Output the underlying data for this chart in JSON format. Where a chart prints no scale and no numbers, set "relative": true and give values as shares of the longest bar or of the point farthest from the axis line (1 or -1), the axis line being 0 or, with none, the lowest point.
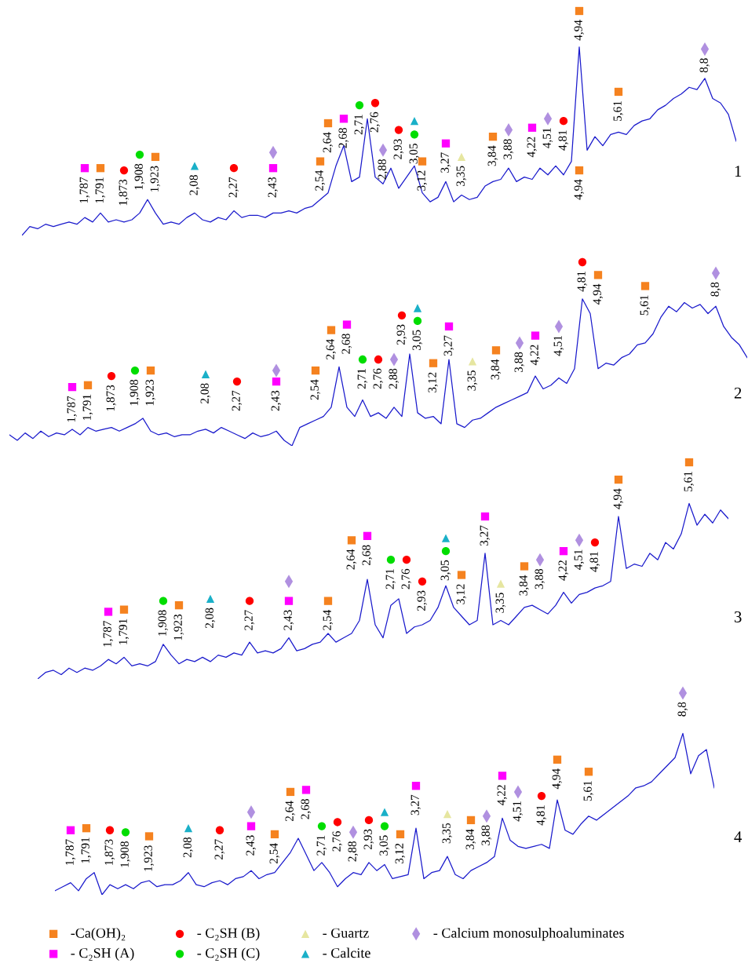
{
  "chart_data": [
    {
      "type": "line",
      "relative": true,
      "annotations": [
        "1",
        {
          "text": "4,94",
          "x": "4,94",
          "y": 1.0
        }
      ],
      "categories": [
        null,
        null,
        null,
        null,
        null,
        null,
        null,
        null,
        "1,787",
        null,
        "1,791",
        null,
        null,
        "1,873",
        null,
        "1,908",
        null,
        "1,923",
        null,
        null,
        null,
        null,
        "2,08",
        null,
        null,
        null,
        null,
        "2,27",
        null,
        null,
        null,
        null,
        "2,43",
        null,
        null,
        null,
        null,
        null,
        "2,54",
        "2,64",
        null,
        "2,68",
        null,
        "2,71",
        null,
        "2,76",
        "2,88",
        null,
        "2,93",
        null,
        "3,05",
        "3,12",
        null,
        null,
        "3,27",
        null,
        "3,35",
        null,
        null,
        null,
        "3,84",
        null,
        "3,88",
        null,
        null,
        "4,22",
        null,
        "4,51",
        null,
        "4,81",
        null,
        "4,94",
        null,
        null,
        null,
        null,
        "5,61",
        null,
        null,
        null,
        null,
        null,
        null,
        null,
        null,
        null,
        null,
        "8,8",
        null,
        null,
        null,
        null
      ],
      "series": [
        {
          "type": "line",
          "color": "#1a1acc",
          "values": [
            0,
            0.04,
            0.03,
            0.05,
            0.04,
            0.05,
            0.06,
            0.05,
            0.08,
            0.06,
            0.1,
            0.06,
            0.07,
            0.06,
            0.07,
            0.1,
            0.16,
            0.1,
            0.05,
            0.06,
            0.05,
            0.08,
            0.1,
            0.07,
            0.06,
            0.08,
            0.07,
            0.11,
            0.08,
            0.09,
            0.09,
            0.08,
            0.1,
            0.1,
            0.11,
            0.1,
            0.12,
            0.13,
            0.16,
            0.19,
            0.31,
            0.4,
            0.24,
            0.26,
            0.52,
            0.26,
            0.23,
            0.3,
            0.21,
            0.26,
            0.31,
            0.19,
            0.15,
            0.17,
            0.24,
            0.15,
            0.18,
            0.16,
            0.17,
            0.22,
            0.24,
            0.25,
            0.3,
            0.24,
            0.26,
            0.25,
            0.3,
            0.27,
            0.31,
            0.27,
            0.33,
            0.84,
            0.38,
            0.44,
            0.4,
            0.45,
            0.46,
            0.45,
            0.49,
            0.51,
            0.52,
            0.56,
            0.58,
            0.61,
            0.63,
            0.66,
            0.65,
            0.7,
            0.61,
            0.59,
            0.54,
            0.42
          ]
        },
        {
          "type": "scatter",
          "color": "#f5821f",
          "marker": "square",
          "x": [
            "1,791",
            "1,923",
            "2,54",
            "2,64",
            "3,12",
            "3,84",
            "4,94",
            "4,94",
            "5,61"
          ],
          "values": [
            0.3,
            0.35,
            0.33,
            0.5,
            0.33,
            0.44,
            0.29,
            1.0,
            0.64
          ]
        },
        {
          "type": "scatter",
          "color": "#ff00ff",
          "marker": "square",
          "x": [
            "1,787",
            "2,43",
            "2,68",
            "3,27",
            "4,22"
          ],
          "values": [
            0.3,
            0.3,
            0.52,
            0.41,
            0.48
          ]
        },
        {
          "type": "scatter",
          "color": "#ff0000",
          "marker": "circle",
          "x": [
            "1,873",
            "2,27",
            "2,76",
            "2,93",
            "4,81"
          ],
          "values": [
            0.29,
            0.3,
            0.59,
            0.47,
            0.51
          ]
        },
        {
          "type": "scatter",
          "color": "#00dd00",
          "marker": "circle",
          "x": [
            "1,908",
            "2,71",
            "3,05"
          ],
          "values": [
            0.36,
            0.58,
            0.45
          ]
        },
        {
          "type": "scatter",
          "color": "#e6e6a0",
          "marker": "triangle",
          "x": [
            "3,35"
          ],
          "values": [
            0.35
          ]
        },
        {
          "type": "scatter",
          "color": "#1ab0c8",
          "marker": "triangle",
          "x": [
            "2,08",
            "3,05"
          ],
          "values": [
            0.31,
            0.51
          ]
        },
        {
          "type": "scatter",
          "color": "#b090e0",
          "marker": "diamond",
          "x": [
            "2,43",
            "2,88",
            "3,88",
            "4,51",
            "8,8"
          ],
          "values": [
            0.37,
            0.38,
            0.47,
            0.52,
            0.83
          ]
        }
      ]
    },
    {
      "type": "line",
      "relative": true,
      "annotations": [
        "2"
      ],
      "categories": [
        null,
        null,
        null,
        null,
        null,
        null,
        null,
        null,
        "1,787",
        null,
        "1,791",
        null,
        null,
        "1,873",
        null,
        null,
        "1,908",
        null,
        "1,923",
        null,
        null,
        null,
        null,
        null,
        null,
        "2,08",
        null,
        null,
        null,
        "2,27",
        null,
        null,
        null,
        null,
        "2,43",
        null,
        null,
        null,
        null,
        "2,54",
        null,
        "2,64",
        null,
        "2,68",
        null,
        "2,71",
        null,
        "2,76",
        null,
        "2,88",
        "2,93",
        null,
        "3,05",
        null,
        "3,12",
        null,
        "3,27",
        null,
        null,
        "3,35",
        null,
        null,
        "3,84",
        null,
        null,
        "3,88",
        null,
        "4,22",
        null,
        null,
        "4,51",
        null,
        null,
        "4,81",
        null,
        "4,94",
        null,
        null,
        null,
        null,
        null,
        "5,61",
        null,
        null,
        null,
        null,
        null,
        null,
        null,
        null,
        "8,8",
        null,
        null,
        null,
        null
      ],
      "series": [
        {
          "type": "line",
          "color": "#1a1acc",
          "values": [
            0.06,
            0.03,
            0.07,
            0.04,
            0.08,
            0.05,
            0.07,
            0.06,
            0.09,
            0.06,
            0.1,
            0.08,
            0.09,
            0.1,
            0.08,
            0.1,
            0.12,
            0.15,
            0.08,
            0.06,
            0.07,
            0.05,
            0.06,
            0.06,
            0.08,
            0.09,
            0.07,
            0.1,
            0.08,
            0.06,
            0.04,
            0.07,
            0.05,
            0.06,
            0.08,
            0.03,
            0,
            0.1,
            0.12,
            0.14,
            0.16,
            0.21,
            0.43,
            0.21,
            0.16,
            0.25,
            0.16,
            0.18,
            0.15,
            0.21,
            0.16,
            0.5,
            0.18,
            0.15,
            0.16,
            0.12,
            0.47,
            0.12,
            0.1,
            0.14,
            0.15,
            0.18,
            0.21,
            0.23,
            0.25,
            0.27,
            0.29,
            0.38,
            0.31,
            0.33,
            0.37,
            0.34,
            0.42,
            0.8,
            0.72,
            0.42,
            0.45,
            0.44,
            0.48,
            0.5,
            0.55,
            0.56,
            0.61,
            0.7,
            0.76,
            0.73,
            0.78,
            0.75,
            0.77,
            0.72,
            0.76,
            0.65,
            0.59,
            0.55,
            0.48
          ]
        },
        {
          "type": "scatter",
          "color": "#f5821f",
          "marker": "square",
          "x": [
            "1,791",
            "1,923",
            "2,54",
            "2,64",
            "3,12",
            "3,84",
            "4,94",
            "5,61"
          ],
          "values": [
            0.33,
            0.41,
            0.41,
            0.63,
            0.45,
            0.52,
            0.93,
            0.87
          ]
        },
        {
          "type": "scatter",
          "color": "#ff00ff",
          "marker": "square",
          "x": [
            "1,787",
            "2,43",
            "2,68",
            "3,27",
            "4,22"
          ],
          "values": [
            0.32,
            0.35,
            0.66,
            0.65,
            0.6
          ]
        },
        {
          "type": "scatter",
          "color": "#ff0000",
          "marker": "circle",
          "x": [
            "1,873",
            "2,27",
            "2,76",
            "2,93",
            "4,81"
          ],
          "values": [
            0.38,
            0.35,
            0.47,
            0.71,
            1.0
          ]
        },
        {
          "type": "scatter",
          "color": "#00dd00",
          "marker": "circle",
          "x": [
            "1,908",
            "2,71",
            "3,05"
          ],
          "values": [
            0.41,
            0.47,
            0.68
          ]
        },
        {
          "type": "scatter",
          "color": "#e6e6a0",
          "marker": "triangle",
          "x": [
            "3,35"
          ],
          "values": [
            0.46
          ]
        },
        {
          "type": "scatter",
          "color": "#1ab0c8",
          "marker": "triangle",
          "x": [
            "2,08",
            "3,05"
          ],
          "values": [
            0.39,
            0.75
          ]
        },
        {
          "type": "scatter",
          "color": "#b090e0",
          "marker": "diamond",
          "x": [
            "2,43",
            "2,88",
            "3,88",
            "4,51",
            "8,8"
          ],
          "values": [
            0.41,
            0.47,
            0.56,
            0.65,
            0.94
          ]
        }
      ]
    },
    {
      "type": "line",
      "relative": true,
      "annotations": [
        "3"
      ],
      "categories": [
        null,
        null,
        null,
        null,
        null,
        null,
        null,
        null,
        null,
        "1,787",
        null,
        "1,791",
        null,
        null,
        null,
        null,
        "1,908",
        null,
        "1,923",
        null,
        null,
        null,
        "2,08",
        null,
        null,
        null,
        null,
        "2,27",
        null,
        null,
        null,
        null,
        "2,43",
        null,
        null,
        null,
        null,
        "2,54",
        null,
        null,
        "2,64",
        null,
        "2,68",
        null,
        null,
        "2,71",
        null,
        "2,76",
        null,
        "2,93",
        null,
        null,
        "3,05",
        null,
        "3,12",
        null,
        null,
        "3,27",
        null,
        "3,35",
        null,
        null,
        "3,84",
        null,
        "3,88",
        null,
        null,
        "4,22",
        null,
        "4,51",
        null,
        "4,81",
        null,
        null,
        "4,94",
        null,
        null,
        null,
        null,
        null,
        null,
        null,
        null,
        "5,61",
        null,
        null,
        null,
        null,
        null
      ],
      "series": [
        {
          "type": "line",
          "color": "#1a1acc",
          "values": [
            0,
            0.03,
            0.04,
            0.02,
            0.05,
            0.03,
            0.05,
            0.04,
            0.06,
            0.09,
            0.07,
            0.1,
            0.06,
            0.07,
            0.06,
            0.08,
            0.16,
            0.11,
            0.07,
            0.09,
            0.08,
            0.1,
            0.08,
            0.11,
            0.1,
            0.12,
            0.11,
            0.17,
            0.12,
            0.13,
            0.12,
            0.14,
            0.19,
            0.13,
            0.14,
            0.16,
            0.17,
            0.21,
            0.17,
            0.19,
            0.21,
            0.27,
            0.46,
            0.25,
            0.19,
            0.34,
            0.37,
            0.21,
            0.24,
            0.25,
            0.27,
            0.33,
            0.43,
            0.33,
            0.29,
            0.25,
            0.27,
            0.58,
            0.25,
            0.27,
            0.25,
            0.29,
            0.33,
            0.34,
            0.32,
            0.3,
            0.34,
            0.4,
            0.35,
            0.39,
            0.4,
            0.42,
            0.43,
            0.45,
            0.75,
            0.51,
            0.53,
            0.52,
            0.58,
            0.55,
            0.63,
            0.6,
            0.67,
            0.81,
            0.71,
            0.76,
            0.72,
            0.78,
            0.74
          ]
        },
        {
          "type": "scatter",
          "color": "#f5821f",
          "marker": "square",
          "x": [
            "1,791",
            "1,923",
            "2,54",
            "2,64",
            "3,12",
            "3,84",
            "4,94",
            "5,61"
          ],
          "values": [
            0.32,
            0.34,
            0.36,
            0.64,
            0.48,
            0.52,
            0.92,
            1.0
          ]
        },
        {
          "type": "scatter",
          "color": "#ff00ff",
          "marker": "square",
          "x": [
            "1,787",
            "2,43",
            "2,68",
            "3,27",
            "4,22"
          ],
          "values": [
            0.31,
            0.36,
            0.66,
            0.75,
            0.59
          ]
        },
        {
          "type": "scatter",
          "color": "#ff0000",
          "marker": "circle",
          "x": [
            "2,27",
            "2,76",
            "2,93",
            "4,81"
          ],
          "values": [
            0.36,
            0.55,
            0.45,
            0.63
          ]
        },
        {
          "type": "scatter",
          "color": "#00dd00",
          "marker": "circle",
          "x": [
            "1,908",
            "2,71",
            "3,05"
          ],
          "values": [
            0.36,
            0.55,
            0.59
          ]
        },
        {
          "type": "scatter",
          "color": "#e6e6a0",
          "marker": "triangle",
          "x": [
            "3,35"
          ],
          "values": [
            0.44
          ]
        },
        {
          "type": "scatter",
          "color": "#1ab0c8",
          "marker": "triangle",
          "x": [
            "2,08",
            "3,05"
          ],
          "values": [
            0.37,
            0.65
          ]
        },
        {
          "type": "scatter",
          "color": "#b090e0",
          "marker": "diamond",
          "x": [
            "2,43",
            "3,88",
            "4,51"
          ],
          "values": [
            0.45,
            0.55,
            0.64
          ]
        }
      ]
    },
    {
      "type": "line",
      "relative": true,
      "annotations": [
        "4"
      ],
      "legend": "bottom",
      "categories": [
        null,
        null,
        "1,787",
        null,
        "1,791",
        null,
        null,
        "1,873",
        null,
        "1,908",
        null,
        null,
        "1,923",
        null,
        null,
        null,
        null,
        "2,08",
        null,
        null,
        null,
        "2,27",
        null,
        null,
        null,
        "2,43",
        null,
        null,
        "2,54",
        null,
        "2,64",
        null,
        "2,68",
        null,
        "2,71",
        null,
        "2,76",
        null,
        "2,88",
        null,
        "2,93",
        null,
        "3,05",
        null,
        "3,12",
        null,
        "3,27",
        null,
        null,
        null,
        "3,35",
        null,
        null,
        "3,84",
        null,
        "3,88",
        null,
        "4,22",
        null,
        "4,51",
        null,
        null,
        "4,81",
        null,
        "4,94",
        null,
        null,
        null,
        "5,61",
        null,
        null,
        null,
        null,
        null,
        null,
        null,
        null,
        null,
        null,
        null,
        "8,8",
        null,
        null,
        null,
        null
      ],
      "series": [
        {
          "type": "line",
          "color": "#1a1acc",
          "values": [
            0.02,
            0.04,
            0.06,
            0.02,
            0.08,
            0.11,
            0,
            0.05,
            0.03,
            0.05,
            0.03,
            0.06,
            0.07,
            0.04,
            0.05,
            0.05,
            0.07,
            0.11,
            0.05,
            0.04,
            0.06,
            0.07,
            0.05,
            0.08,
            0.09,
            0.12,
            0.08,
            0.1,
            0.11,
            0.16,
            0.21,
            0.28,
            0.2,
            0.12,
            0.16,
            0.11,
            0.04,
            0.08,
            0.11,
            0.1,
            0.16,
            0.12,
            0.15,
            0.08,
            0.09,
            0.1,
            0.33,
            0.08,
            0.11,
            0.12,
            0.19,
            0.1,
            0.08,
            0.12,
            0.14,
            0.16,
            0.19,
            0.38,
            0.27,
            0.24,
            0.23,
            0.24,
            0.25,
            0.23,
            0.47,
            0.32,
            0.3,
            0.35,
            0.39,
            0.37,
            0.4,
            0.43,
            0.46,
            0.49,
            0.53,
            0.54,
            0.56,
            0.6,
            0.64,
            0.68,
            0.8,
            0.6,
            0.69,
            0.72,
            0.53
          ]
        },
        {
          "type": "scatter",
          "name": "-Ca(OH)₂",
          "color": "#f5821f",
          "marker": "square",
          "x": [
            "1,791",
            "1,923",
            "2,54",
            "2,64",
            "3,12",
            "3,84",
            "4,94",
            "5,61"
          ],
          "values": [
            0.33,
            0.29,
            0.3,
            0.51,
            0.3,
            0.37,
            0.67,
            0.61
          ]
        },
        {
          "type": "scatter",
          "name": "- C₂SH (A)",
          "color": "#ff00ff",
          "marker": "square",
          "x": [
            "1,787",
            "2,43",
            "2,68",
            "3,27",
            "4,22"
          ],
          "values": [
            0.32,
            0.34,
            0.52,
            0.54,
            0.59
          ]
        },
        {
          "type": "scatter",
          "name": "- C₂SH (B)",
          "color": "#ff0000",
          "marker": "circle",
          "x": [
            "1,873",
            "2,27",
            "2,76",
            "2,93",
            "4,81"
          ],
          "values": [
            0.32,
            0.32,
            0.36,
            0.37,
            0.49
          ]
        },
        {
          "type": "scatter",
          "name": "- C₂SH (C)",
          "color": "#00dd00",
          "marker": "circle",
          "x": [
            "1,908",
            "2,71",
            "3,05"
          ],
          "values": [
            0.31,
            0.34,
            0.34
          ]
        },
        {
          "type": "scatter",
          "name": "- Guartz",
          "color": "#e6e6a0",
          "marker": "triangle",
          "x": [
            "3,35"
          ],
          "values": [
            0.4
          ]
        },
        {
          "type": "scatter",
          "name": "- Calcite",
          "color": "#1ab0c8",
          "marker": "triangle",
          "x": [
            "2,08",
            "3,05"
          ],
          "values": [
            0.33,
            0.41
          ]
        },
        {
          "type": "scatter",
          "name": "- Calcium monosulphoaluminates",
          "color": "#b090e0",
          "marker": "diamond",
          "x": [
            "2,43",
            "2,88",
            "3,88",
            "4,51",
            "8,8"
          ],
          "values": [
            0.41,
            0.31,
            0.39,
            0.51,
            1.0
          ]
        }
      ]
    }
  ]
}
